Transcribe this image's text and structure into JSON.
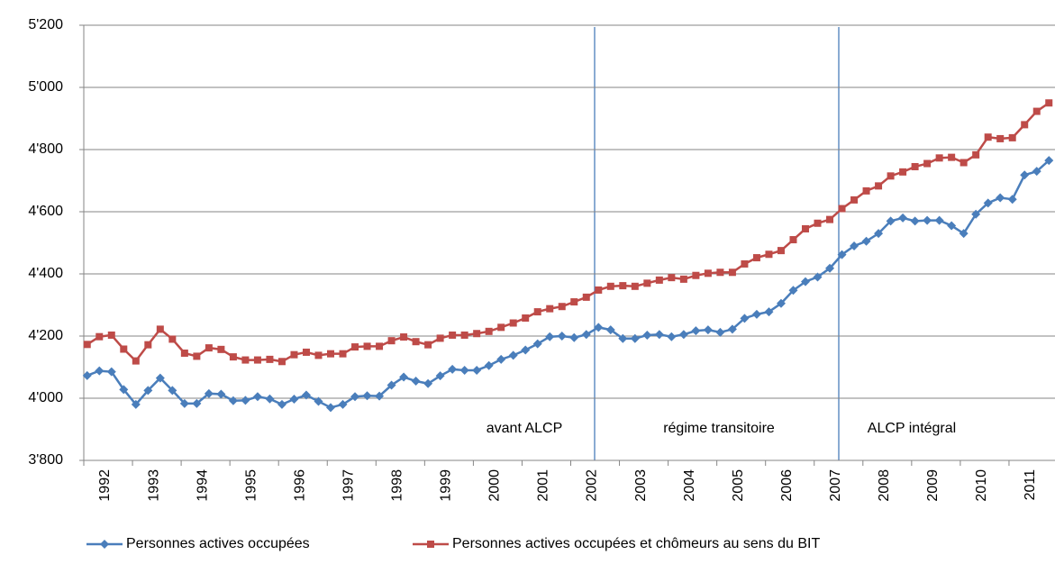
{
  "chart_data": {
    "type": "line",
    "categories": [
      "1992",
      null,
      null,
      null,
      "1993",
      null,
      null,
      null,
      "1994",
      null,
      null,
      null,
      "1995",
      null,
      null,
      null,
      "1996",
      null,
      null,
      null,
      "1997",
      null,
      null,
      null,
      "1998",
      null,
      null,
      null,
      "1999",
      null,
      null,
      null,
      "2000",
      null,
      null,
      null,
      "2001",
      null,
      null,
      null,
      "2002",
      null,
      null,
      null,
      "2003",
      null,
      null,
      null,
      "2004",
      null,
      null,
      null,
      "2005",
      null,
      null,
      null,
      "2006",
      null,
      null,
      null,
      "2007",
      null,
      null,
      null,
      "2008",
      null,
      null,
      null,
      "2009",
      null,
      null,
      null,
      "2010",
      null,
      null,
      null,
      "2011",
      null,
      null,
      null
    ],
    "series": [
      {
        "name": "Personnes actives occupées",
        "color": "#4a7ebb",
        "marker": "diamond",
        "values": [
          4073,
          4088,
          4085,
          4028,
          3980,
          4025,
          4065,
          4025,
          3983,
          3983,
          4015,
          4013,
          3992,
          3993,
          4005,
          3998,
          3980,
          3997,
          4010,
          3990,
          3970,
          3980,
          4005,
          4008,
          4007,
          4042,
          4068,
          4055,
          4047,
          4072,
          4093,
          4090,
          4090,
          4105,
          4125,
          4138,
          4155,
          4175,
          4198,
          4200,
          4195,
          4205,
          4228,
          4220,
          4192,
          4192,
          4203,
          4205,
          4198,
          4205,
          4217,
          4220,
          4212,
          4222,
          4257,
          4270,
          4278,
          4305,
          4347,
          4375,
          4390,
          4418,
          4462,
          4490,
          4505,
          4530,
          4570,
          4580,
          4570,
          4572,
          4572,
          4555,
          4530,
          4592,
          4628,
          4645,
          4640,
          4718,
          4730,
          4765
        ]
      },
      {
        "name": "Personnes actives occupées et chômeurs au sens du BIT",
        "color": "#be4b48",
        "marker": "square",
        "values": [
          4173,
          4198,
          4203,
          4158,
          4120,
          4172,
          4222,
          4190,
          4145,
          4135,
          4162,
          4157,
          4133,
          4123,
          4123,
          4125,
          4118,
          4140,
          4148,
          4138,
          4143,
          4143,
          4165,
          4167,
          4167,
          4185,
          4197,
          4182,
          4172,
          4193,
          4203,
          4203,
          4208,
          4215,
          4228,
          4242,
          4258,
          4278,
          4288,
          4295,
          4310,
          4325,
          4348,
          4360,
          4362,
          4360,
          4370,
          4380,
          4388,
          4383,
          4395,
          4402,
          4405,
          4405,
          4432,
          4452,
          4463,
          4475,
          4510,
          4545,
          4563,
          4575,
          4610,
          4638,
          4667,
          4683,
          4715,
          4728,
          4745,
          4755,
          4773,
          4775,
          4758,
          4783,
          4840,
          4835,
          4838,
          4880,
          4923,
          4950
        ]
      }
    ],
    "ylim": [
      3800,
      5200
    ],
    "yticks": [
      {
        "value": 3800,
        "label": "3'800"
      },
      {
        "value": 4000,
        "label": "4'000"
      },
      {
        "value": 4200,
        "label": "4'200"
      },
      {
        "value": 4400,
        "label": "4'400"
      },
      {
        "value": 4600,
        "label": "4'600"
      },
      {
        "value": 4800,
        "label": "4'800"
      },
      {
        "value": 5000,
        "label": "5'000"
      },
      {
        "value": 5200,
        "label": "5'200"
      }
    ],
    "grid": true,
    "annotations": [
      "avant ALCP",
      "régime transitoire",
      "ALCP intégral"
    ],
    "legend": "bottom"
  }
}
